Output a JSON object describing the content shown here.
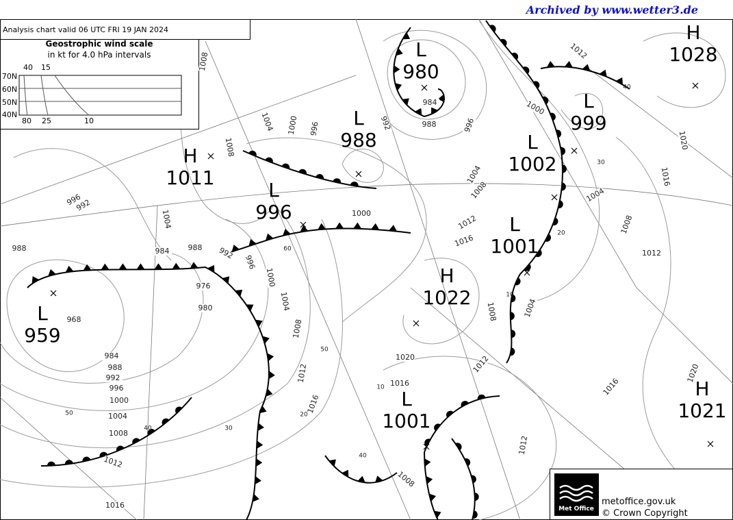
{
  "header": {
    "archive": "Archived by www.wetter3.de",
    "title": "Analysis chart  valid 06 UTC FRI 19  JAN 2024"
  },
  "wind_scale": {
    "title": "Geostrophic wind scale",
    "subtitle": "in kt for 4.0 hPa intervals",
    "latitudes": [
      "70N",
      "60N",
      "50N",
      "40N"
    ],
    "top_speeds": [
      "40",
      "15"
    ],
    "bottom_speeds": [
      "80",
      "25",
      "10"
    ]
  },
  "centers": [
    {
      "type": "L",
      "pressure": "980"
    },
    {
      "type": "L",
      "pressure": "988"
    },
    {
      "type": "H",
      "pressure": "1011"
    },
    {
      "type": "L",
      "pressure": "996"
    },
    {
      "type": "L",
      "pressure": "959"
    },
    {
      "type": "H",
      "pressure": "1028"
    },
    {
      "type": "L",
      "pressure": "999"
    },
    {
      "type": "L",
      "pressure": "1002"
    },
    {
      "type": "L",
      "pressure": "1001"
    },
    {
      "type": "H",
      "pressure": "1022"
    },
    {
      "type": "L",
      "pressure": "1001"
    },
    {
      "type": "H",
      "pressure": "1021"
    }
  ],
  "isobar_labels": [
    "1008",
    "1004",
    "1000",
    "996",
    "992",
    "984",
    "988",
    "996",
    "1000",
    "1012",
    "1020",
    "1016",
    "1004",
    "1008",
    "1012",
    "1004",
    "1008",
    "1012",
    "1016",
    "1000",
    "1008",
    "996",
    "992",
    "1004",
    "988",
    "984",
    "988",
    "992",
    "996",
    "1000",
    "1004",
    "1008",
    "1012",
    "1016",
    "976",
    "980",
    "968",
    "984",
    "988",
    "992",
    "996",
    "1000",
    "1004",
    "1008",
    "1012",
    "1016",
    "1020",
    "1016",
    "1012",
    "1008",
    "1004",
    "1016",
    "1020",
    "1012",
    "1008"
  ],
  "wind_labels": [
    "60",
    "50",
    "40",
    "30",
    "20",
    "10",
    "50",
    "40",
    "10",
    "20",
    "30",
    "40"
  ],
  "footer": {
    "logo": "Met Office",
    "site": "metoffice.gov.uk",
    "copyright": "© Crown Copyright"
  }
}
